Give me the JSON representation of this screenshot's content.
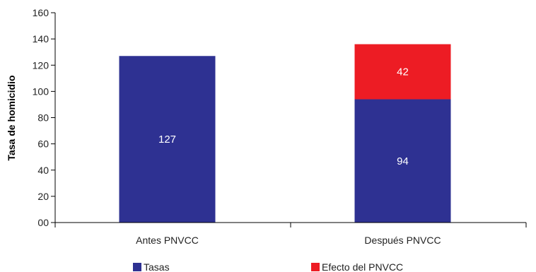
{
  "chart_data": {
    "type": "bar",
    "stacked": true,
    "categories": [
      "Antes PNVCC",
      "Después PNVCC"
    ],
    "series": [
      {
        "name": "Tasas",
        "color": "#2e3192",
        "values": [
          127,
          94
        ]
      },
      {
        "name": "Efecto del PNVCC",
        "color": "#ed1c24",
        "values": [
          0,
          42
        ]
      }
    ],
    "data_labels": [
      [
        "127",
        "94"
      ],
      [
        "",
        "42"
      ]
    ],
    "ylabel": "Tasa de homicidio",
    "ylim": [
      0,
      160
    ],
    "yticks": [
      0,
      20,
      40,
      60,
      80,
      100,
      120,
      140,
      160
    ],
    "ytick_labels": [
      "00",
      "20",
      "40",
      "60",
      "80",
      "100",
      "120",
      "140",
      "160"
    ],
    "legend": {
      "position": "bottom"
    },
    "grid": false
  }
}
